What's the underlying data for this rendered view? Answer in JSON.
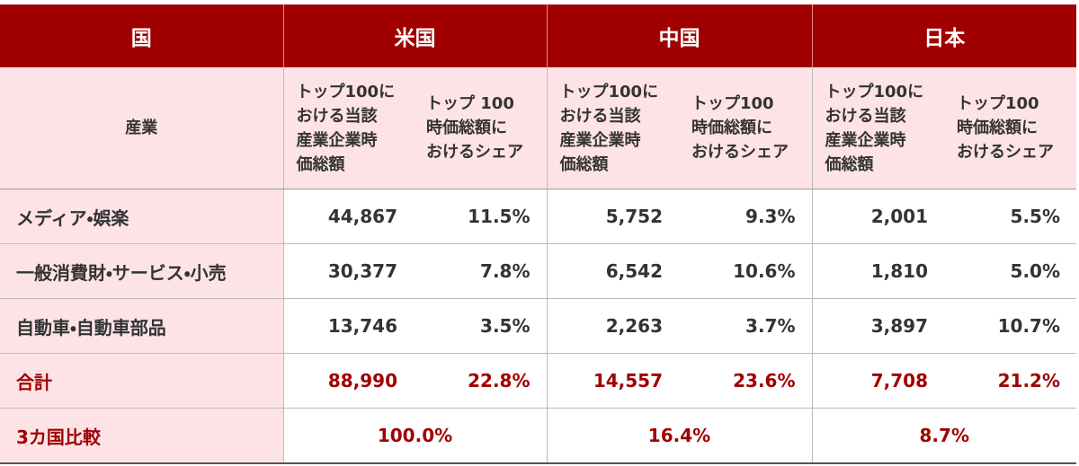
{
  "header": {
    "cells": [
      "国",
      "米国",
      "中国",
      "日本"
    ]
  },
  "subheader": {
    "label": "産業",
    "columns": [
      [
        "トップ100に",
        "おける当該",
        "産業企業時",
        "価総額"
      ],
      [
        "トップ 100",
        "時価総額に",
        "おけるシェア"
      ],
      [
        "トップ100に",
        "おける当該",
        "産業企業時",
        "価総額"
      ],
      [
        "トップ100",
        "時価総額に",
        "おけるシェア"
      ],
      [
        "トップ100に",
        "おける当該",
        "産業企業時",
        "価総額"
      ],
      [
        "トップ100",
        "時価総額に",
        "おけるシェア"
      ]
    ]
  },
  "rows": [
    {
      "label": "メディア・娯楽",
      "values": [
        "44,867",
        "11.5%",
        "5,752",
        "9.3%",
        "2,001",
        "5.5%"
      ]
    },
    {
      "label": "一般消費財・サービス・小売",
      "values": [
        "30,377",
        "7.8%",
        "6,542",
        "10.6%",
        "1,810",
        "5.0%"
      ]
    },
    {
      "label": "自動車・自動車部品",
      "values": [
        "13,746",
        "3.5%",
        "2,263",
        "3.7%",
        "3,897",
        "10.7%"
      ]
    }
  ],
  "total": {
    "label": "合計",
    "values": [
      "88,990",
      "22.8%",
      "14,557",
      "23.6%",
      "7,708",
      "21.2%"
    ]
  },
  "comparison": {
    "label": "3カ国比較",
    "values": [
      "100.0%",
      "16.4%",
      "8.7%"
    ]
  }
}
